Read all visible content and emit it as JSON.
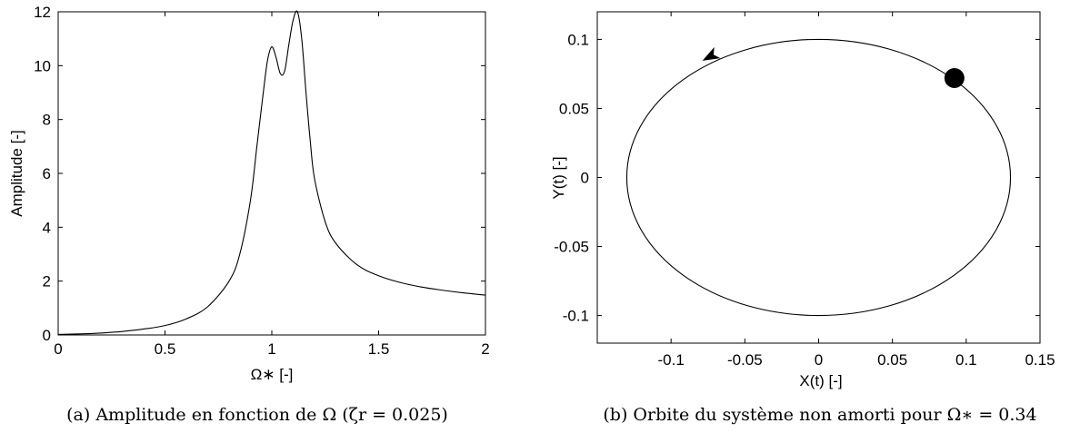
{
  "chart_data": [
    {
      "type": "line",
      "xlabel": "Ω∗ [-]",
      "ylabel": "Amplitude [-]",
      "xlim": [
        0,
        2
      ],
      "ylim": [
        0,
        12
      ],
      "xticks": [
        "0",
        "0.5",
        "1",
        "1.5",
        "2"
      ],
      "yticks": [
        "0",
        "2",
        "4",
        "6",
        "8",
        "10",
        "12"
      ],
      "grid": false,
      "caption": "(a) Amplitude en fonction de Ω (ζr = 0.025)",
      "series": [
        {
          "color": "#000000",
          "x": [
            0,
            0.1,
            0.2,
            0.3,
            0.4,
            0.5,
            0.6,
            0.7,
            0.8,
            0.85,
            0.9,
            0.93,
            0.96,
            0.98,
            1.0,
            1.02,
            1.04,
            1.06,
            1.08,
            1.1,
            1.12,
            1.14,
            1.16,
            1.18,
            1.2,
            1.25,
            1.3,
            1.4,
            1.5,
            1.6,
            1.7,
            1.8,
            1.9,
            2.0
          ],
          "y": [
            0.02,
            0.04,
            0.07,
            0.13,
            0.22,
            0.35,
            0.6,
            1.05,
            2.0,
            3.0,
            5.0,
            7.0,
            9.0,
            10.2,
            10.7,
            10.3,
            9.7,
            9.8,
            10.8,
            11.7,
            12.0,
            11.0,
            9.0,
            7.2,
            5.8,
            4.2,
            3.4,
            2.6,
            2.2,
            1.95,
            1.78,
            1.66,
            1.56,
            1.48
          ]
        }
      ]
    },
    {
      "type": "line",
      "xlabel": "X(t) [-]",
      "ylabel": "Y(t) [-]",
      "xlim": [
        -0.15,
        0.15
      ],
      "ylim": [
        -0.12,
        0.12
      ],
      "xticks": [
        "-0.1",
        "-0.05",
        "0",
        "0.05",
        "0.1",
        "0.15"
      ],
      "yticks": [
        "-0.1",
        "-0.05",
        "0",
        "0.05",
        "0.1"
      ],
      "grid": false,
      "caption": "(b) Orbite du système non amorti pour Ω∗ = 0.34",
      "orbit": {
        "center": [
          0,
          0
        ],
        "semi_axis_x": 0.13,
        "semi_axis_y": 0.1,
        "direction": "counter-clockwise",
        "color": "#000000"
      },
      "marker": {
        "x": 0.092,
        "y": 0.072,
        "color": "#000000"
      },
      "arrow": {
        "x": -0.078,
        "y": 0.085
      }
    }
  ]
}
